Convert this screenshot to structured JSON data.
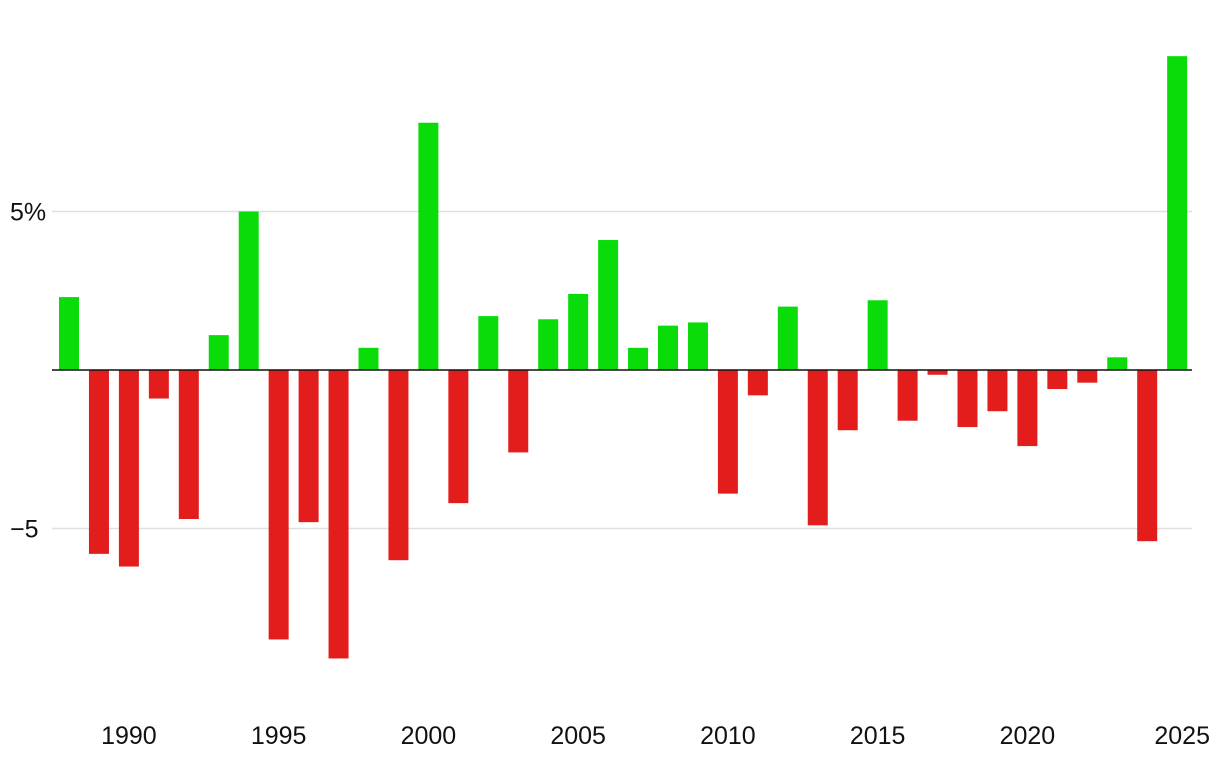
{
  "chart_data": {
    "type": "bar",
    "title": "",
    "xlabel": "",
    "ylabel": "",
    "x": [
      1988,
      1989,
      1990,
      1991,
      1992,
      1993,
      1994,
      1995,
      1996,
      1997,
      1998,
      1999,
      2000,
      2001,
      2002,
      2003,
      2004,
      2005,
      2006,
      2007,
      2008,
      2009,
      2010,
      2011,
      2012,
      2013,
      2014,
      2015,
      2016,
      2017,
      2018,
      2019,
      2020,
      2021,
      2022,
      2023,
      2024,
      2025
    ],
    "values": [
      2.3,
      -5.8,
      -6.2,
      -0.9,
      -4.7,
      1.1,
      5.0,
      -8.5,
      -4.8,
      -9.1,
      0.7,
      -6.0,
      7.8,
      -4.2,
      1.7,
      -2.6,
      1.6,
      2.4,
      4.1,
      0.7,
      1.4,
      1.5,
      -3.9,
      -0.8,
      2.0,
      -4.9,
      -1.9,
      2.2,
      -1.6,
      -0.15,
      -1.8,
      -1.3,
      -2.4,
      -0.6,
      -0.4,
      0.4,
      -5.4,
      9.9
    ],
    "ylim": [
      -10.5,
      11.5
    ],
    "y_ticks": [
      {
        "value": 5,
        "label": "5%"
      },
      {
        "value": -5,
        "label": "−5"
      }
    ],
    "x_ticks": [
      {
        "value": 1990,
        "label": "1990"
      },
      {
        "value": 1995,
        "label": "1995"
      },
      {
        "value": 2000,
        "label": "2000"
      },
      {
        "value": 2005,
        "label": "2005"
      },
      {
        "value": 2010,
        "label": "2010"
      },
      {
        "value": 2015,
        "label": "2015"
      },
      {
        "value": 2020,
        "label": "2020"
      },
      {
        "value": 2025,
        "label": "2025"
      }
    ],
    "grid": true,
    "legend": "none",
    "colors": {
      "positive": "#0adc0a",
      "negative": "#e31c1c",
      "gridline": "#e0e0e0",
      "baseline": "#111111"
    }
  }
}
